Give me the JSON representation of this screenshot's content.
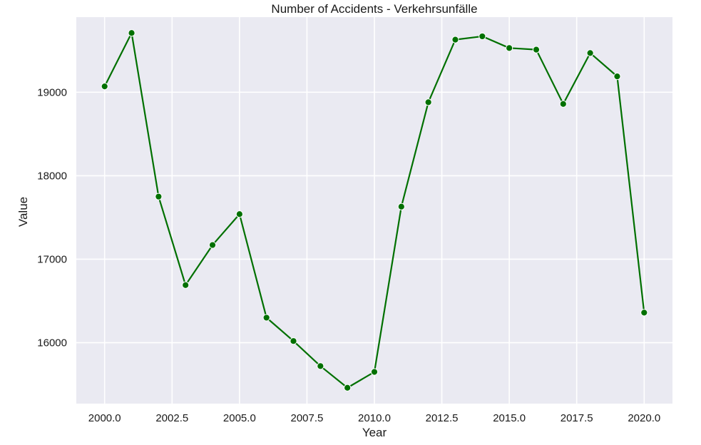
{
  "chart_data": {
    "type": "line",
    "title": "Number of Accidents - Verkehrsunfälle",
    "xlabel": "Year",
    "ylabel": "Value",
    "x": [
      2000,
      2001,
      2002,
      2003,
      2004,
      2005,
      2006,
      2007,
      2008,
      2009,
      2010,
      2011,
      2012,
      2013,
      2014,
      2015,
      2016,
      2017,
      2018,
      2019,
      2020
    ],
    "series": [
      {
        "values": [
          19070,
          19710,
          17750,
          16690,
          17170,
          17540,
          16300,
          16020,
          15720,
          15460,
          15650,
          17630,
          18880,
          19630,
          19670,
          19530,
          19510,
          18860,
          19470,
          19190,
          16360
        ],
        "color": "#007000",
        "marker": "circle"
      }
    ],
    "xlim": [
      1998.95,
      2021.05
    ],
    "ylim": [
      15270,
      19900
    ],
    "xticks": [
      "2000.0",
      "2002.5",
      "2005.0",
      "2007.5",
      "2010.0",
      "2012.5",
      "2015.0",
      "2017.5",
      "2020.0"
    ],
    "yticks": [
      "16000",
      "17000",
      "18000",
      "19000"
    ],
    "grid": true,
    "background": "#eaeaf2",
    "grid_color": "#ffffff"
  }
}
